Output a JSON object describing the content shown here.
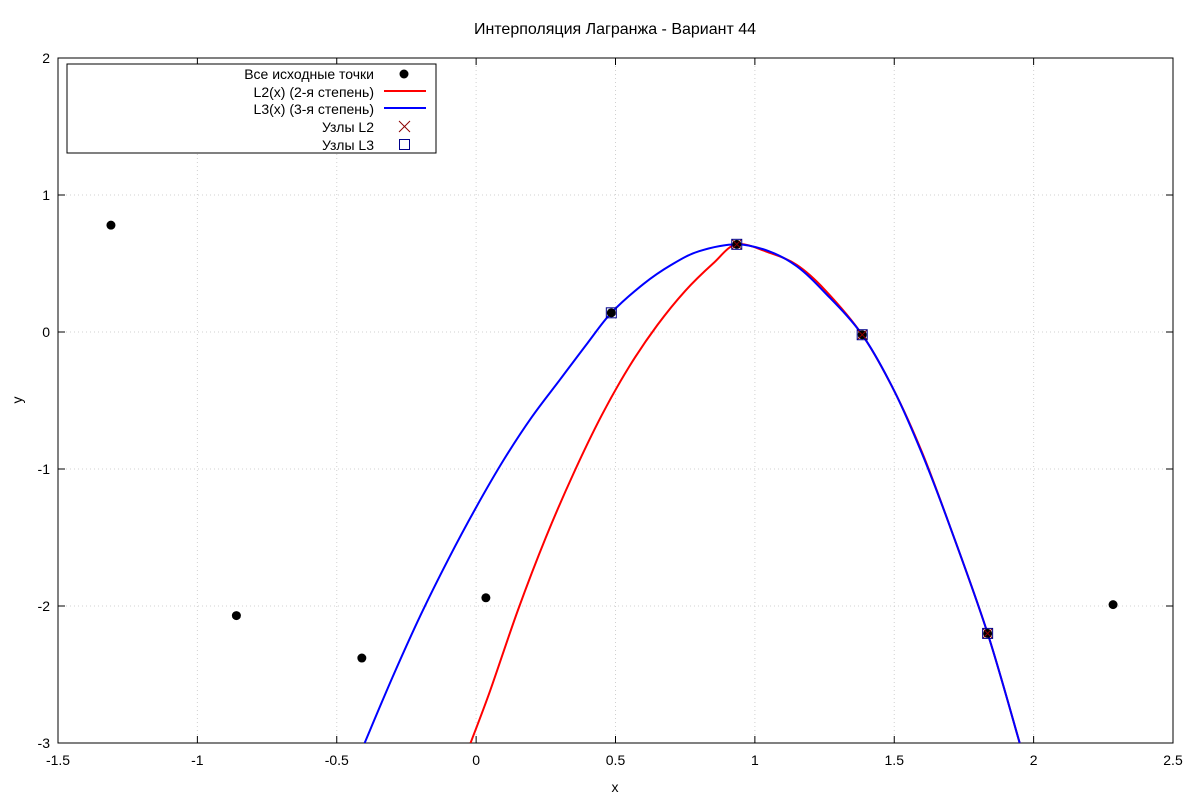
{
  "chart_data": {
    "type": "line",
    "title": "Интерполяция Лагранжа - Вариант 44",
    "xlabel": "x",
    "ylabel": "y",
    "xlim": [
      -1.5,
      2.5
    ],
    "ylim": [
      -3,
      2
    ],
    "x_ticks": [
      -1.5,
      -1,
      -0.5,
      0,
      0.5,
      1,
      1.5,
      2,
      2.5
    ],
    "y_ticks": [
      -3,
      -2,
      -1,
      0,
      1,
      2
    ],
    "x_tick_labels": [
      "-1.5",
      "-1",
      "-0.5",
      "0",
      "0.5",
      "1",
      "1.5",
      "2",
      "2.5"
    ],
    "y_tick_labels": [
      "-3",
      "-2",
      "-1",
      "0",
      "1",
      "2"
    ],
    "grid": true,
    "legend_position": "top-left",
    "all_points": {
      "name": "Все исходные точки",
      "color": "#000000",
      "x": [
        -1.31,
        -0.86,
        -0.41,
        0.035,
        0.485,
        0.935,
        1.385,
        1.835,
        2.285
      ],
      "y": [
        0.78,
        -2.07,
        -2.38,
        -1.94,
        0.14,
        0.64,
        -0.02,
        -2.2,
        -1.99
      ]
    },
    "series": [
      {
        "name": "L2(x) (2-я степень)",
        "color": "#ff0000",
        "x": [
          -0.02,
          0.05,
          0.15,
          0.25,
          0.35,
          0.45,
          0.55,
          0.65,
          0.75,
          0.85,
          0.935,
          1.05,
          1.15,
          1.25,
          1.385,
          1.5,
          1.6,
          1.7,
          1.835,
          1.95
        ],
        "y": [
          -3.0,
          -2.62,
          -2.03,
          -1.5,
          -1.03,
          -0.61,
          -0.25,
          0.05,
          0.3,
          0.5,
          0.64,
          0.58,
          0.49,
          0.31,
          -0.02,
          -0.43,
          -0.88,
          -1.42,
          -2.2,
          -3.0
        ]
      },
      {
        "name": "L3(x) (3-я степень)",
        "color": "#0000ff",
        "x": [
          -0.4,
          -0.3,
          -0.2,
          -0.1,
          0.0,
          0.1,
          0.2,
          0.3,
          0.4,
          0.485,
          0.6,
          0.7,
          0.8,
          0.935,
          1.05,
          1.15,
          1.25,
          1.385,
          1.5,
          1.6,
          1.7,
          1.835,
          1.95
        ],
        "y": [
          -3.0,
          -2.52,
          -2.07,
          -1.66,
          -1.28,
          -0.93,
          -0.62,
          -0.35,
          -0.08,
          0.14,
          0.35,
          0.49,
          0.59,
          0.64,
          0.59,
          0.48,
          0.29,
          -0.02,
          -0.43,
          -0.89,
          -1.42,
          -2.2,
          -3.0
        ]
      }
    ],
    "nodes_L2": {
      "name": "Узлы L2",
      "color": "#8b0000",
      "x": [
        0.935,
        1.385,
        1.835
      ],
      "y": [
        0.64,
        -0.02,
        -2.2
      ]
    },
    "nodes_L3": {
      "name": "Узлы L3",
      "color": "#00008b",
      "x": [
        0.485,
        0.935,
        1.385,
        1.835
      ],
      "y": [
        0.14,
        0.64,
        -0.02,
        -2.2
      ]
    }
  }
}
